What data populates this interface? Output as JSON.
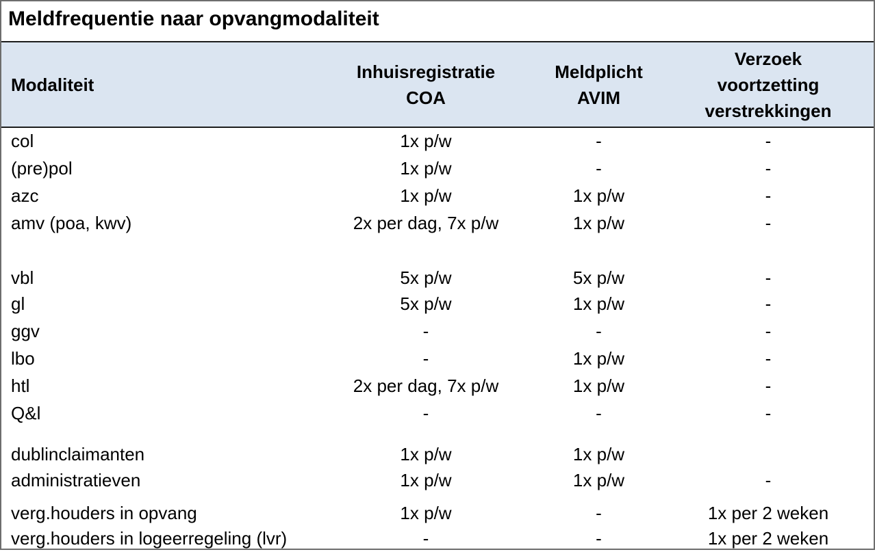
{
  "title": "Meldfrequentie naar opvangmodaliteit",
  "header": {
    "col0": "Modaliteit",
    "col1": "Inhuisregistratie\nCOA",
    "col2": "Meldplicht\nAVIM",
    "col3": "Verzoek\nvoortzetting\nverstrekkingen"
  },
  "rows": [
    [
      "col",
      "1x p/w",
      "-",
      "-"
    ],
    [
      "(pre)pol",
      "1x p/w",
      "-",
      "-"
    ],
    [
      "azc",
      "1x p/w",
      "1x p/w",
      "-"
    ],
    [
      "amv (poa, kwv)",
      "2x per dag, 7x p/w",
      "1x p/w",
      "-"
    ],
    [
      "vbl",
      "5x p/w",
      "5x p/w",
      "-"
    ],
    [
      "gl",
      "5x p/w",
      "1x p/w",
      "-"
    ],
    [
      "ggv",
      "-",
      "-",
      "-"
    ],
    [
      "lbo",
      "-",
      "1x p/w",
      "-"
    ],
    [
      "htl",
      "2x per dag, 7x p/w",
      "1x p/w",
      "-"
    ],
    [
      "Q&l",
      "-",
      "-",
      "-"
    ],
    [
      "dublinclaimanten",
      "1x p/w",
      "1x p/w",
      ""
    ],
    [
      "administratieven",
      "1x p/w",
      "1x p/w",
      "-"
    ],
    [
      "verg.houders in opvang",
      "1x p/w",
      "-",
      "1x per 2 weken"
    ],
    [
      "verg.houders in logeerregeling (lvr)",
      "-",
      "-",
      "1x per 2 weken"
    ]
  ]
}
